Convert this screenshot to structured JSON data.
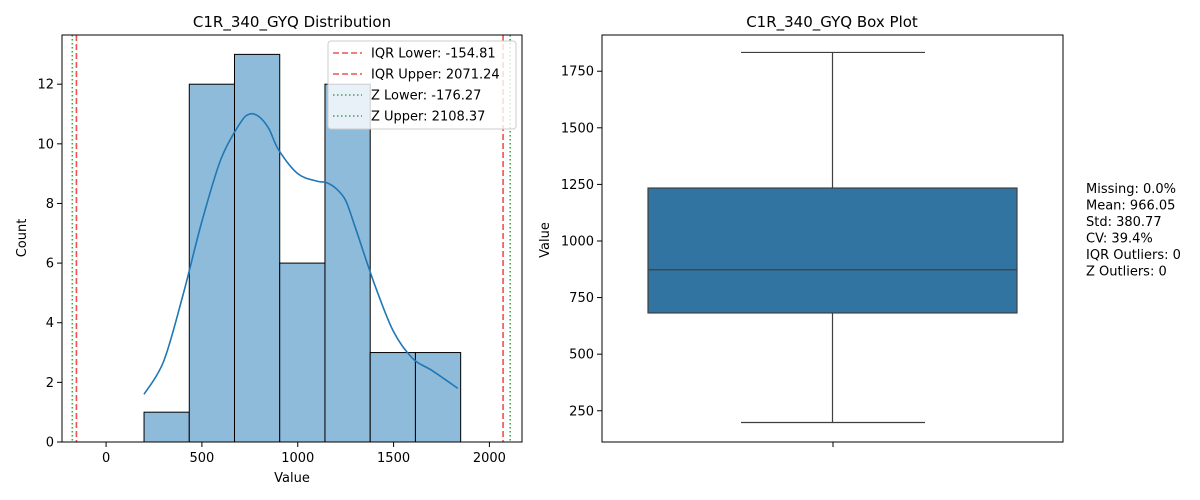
{
  "chart_data": [
    {
      "type": "bar",
      "title": "C1R_340_GYQ Distribution",
      "xlabel": "Value",
      "ylabel": "Count",
      "xlim": [
        -230,
        2170
      ],
      "ylim": [
        0,
        13.65
      ],
      "xticks": [
        0,
        500,
        1000,
        1500,
        2000
      ],
      "yticks": [
        0,
        2,
        4,
        6,
        8,
        10,
        12
      ],
      "bar_color": "#8fbbdb",
      "kde_color": "#1f77b4",
      "bins": [
        {
          "x0": 198,
          "x1": 434,
          "count": 1
        },
        {
          "x0": 434,
          "x1": 670,
          "count": 12
        },
        {
          "x0": 670,
          "x1": 906,
          "count": 13
        },
        {
          "x0": 906,
          "x1": 1142,
          "count": 6
        },
        {
          "x0": 1142,
          "x1": 1378,
          "count": 12
        },
        {
          "x0": 1378,
          "x1": 1614,
          "count": 3
        },
        {
          "x0": 1614,
          "x1": 1850,
          "count": 3
        }
      ],
      "kde": {
        "x": [
          198,
          300,
          400,
          500,
          600,
          700,
          750,
          800,
          850,
          900,
          1000,
          1100,
          1150,
          1200,
          1250,
          1300,
          1400,
          1500,
          1600,
          1700,
          1835
        ],
        "y": [
          1.6,
          2.7,
          4.9,
          7.4,
          9.5,
          10.7,
          11.0,
          10.9,
          10.5,
          9.8,
          9.0,
          8.75,
          8.7,
          8.5,
          8.1,
          7.2,
          5.3,
          3.7,
          2.8,
          2.4,
          1.8
        ]
      },
      "reference_lines": [
        {
          "label": "IQR Lower: -154.81",
          "value": -154.81,
          "color": "#f05050",
          "style": "dashed"
        },
        {
          "label": "IQR Upper: 2071.24",
          "value": 2071.24,
          "color": "#f05050",
          "style": "dashed"
        },
        {
          "label": "Z Lower: -176.27",
          "value": -176.27,
          "color": "#3fa34d",
          "style": "dotted"
        },
        {
          "label": "Z Upper: 2108.37",
          "value": 2108.37,
          "color": "#3fa34d",
          "style": "dotted"
        }
      ],
      "legend_position": "top-right"
    },
    {
      "type": "box",
      "title": "C1R_340_GYQ Box Plot",
      "ylabel": "Value",
      "ylim": [
        112,
        1910
      ],
      "yticks": [
        250,
        500,
        750,
        1000,
        1250,
        1500,
        1750
      ],
      "box_color": "#3274a1",
      "whisker_low": 198,
      "q1": 682,
      "median": 873,
      "q3": 1234,
      "whisker_high": 1833
    }
  ],
  "stats": [
    "Missing: 0.0%",
    "Mean: 966.05",
    "Std: 380.77",
    "CV: 39.4%",
    "IQR Outliers: 0",
    "Z Outliers: 0"
  ]
}
